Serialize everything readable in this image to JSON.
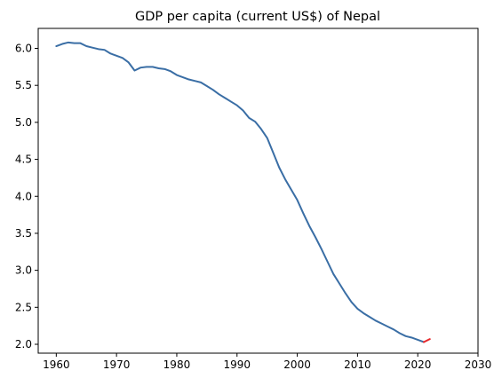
{
  "chart_data": {
    "type": "line",
    "title": "GDP per capita (current US$) of Nepal",
    "xlabel": "",
    "ylabel": "",
    "xlim": [
      1957,
      2030
    ],
    "ylim": [
      1.88,
      6.27
    ],
    "xticks": [
      1960,
      1970,
      1980,
      1990,
      2000,
      2010,
      2020,
      2030
    ],
    "yticks": [
      2.0,
      2.5,
      3.0,
      3.5,
      4.0,
      4.5,
      5.0,
      5.5,
      6.0
    ],
    "xtick_labels": [
      "1960",
      "1970",
      "1980",
      "1990",
      "2000",
      "2010",
      "2020",
      "2030"
    ],
    "ytick_labels": [
      "2.0",
      "2.5",
      "3.0",
      "3.5",
      "4.0",
      "4.5",
      "5.0",
      "5.5",
      "6.0"
    ],
    "grid": false,
    "legend": false,
    "series": [
      {
        "color": "#3a6ea5",
        "x": [
          1960,
          1961,
          1962,
          1963,
          1964,
          1965,
          1966,
          1967,
          1968,
          1969,
          1970,
          1971,
          1972,
          1973,
          1974,
          1975,
          1976,
          1977,
          1978,
          1979,
          1980,
          1981,
          1982,
          1983,
          1984,
          1985,
          1986,
          1987,
          1988,
          1989,
          1990,
          1991,
          1992,
          1993,
          1994,
          1995,
          1996,
          1997,
          1998,
          1999,
          2000,
          2001,
          2002,
          2003,
          2004,
          2005,
          2006,
          2007,
          2008,
          2009,
          2010,
          2011,
          2012,
          2013,
          2014,
          2015,
          2016,
          2017,
          2018,
          2019,
          2020,
          2021
        ],
        "y": [
          6.03,
          6.06,
          6.08,
          6.07,
          6.07,
          6.03,
          6.01,
          5.99,
          5.98,
          5.93,
          5.9,
          5.87,
          5.81,
          5.7,
          5.74,
          5.75,
          5.75,
          5.73,
          5.72,
          5.69,
          5.64,
          5.61,
          5.58,
          5.56,
          5.54,
          5.49,
          5.44,
          5.38,
          5.33,
          5.28,
          5.23,
          5.16,
          5.06,
          5.01,
          4.91,
          4.79,
          4.59,
          4.39,
          4.23,
          4.09,
          3.95,
          3.77,
          3.6,
          3.45,
          3.29,
          3.12,
          2.95,
          2.82,
          2.69,
          2.57,
          2.48,
          2.42,
          2.37,
          2.32,
          2.28,
          2.24,
          2.2,
          2.15,
          2.11,
          2.09,
          2.06,
          2.03
        ]
      },
      {
        "color": "#e8272a",
        "x": [
          2021,
          2022
        ],
        "y": [
          2.03,
          2.07
        ]
      }
    ]
  }
}
